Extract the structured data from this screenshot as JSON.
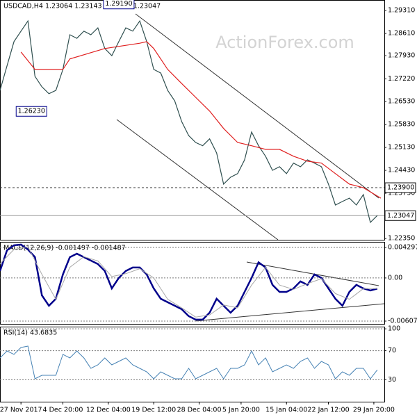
{
  "chart_data": [
    {
      "type": "line",
      "title": "USDCAD,H4 1.23064 1.23143 1.23001 1.23047",
      "watermark": "ActionForex.com",
      "xlim": [
        0,
        110
      ],
      "ylim": [
        1.2231,
        1.2963
      ],
      "grid": false,
      "yticks": [
        {
          "value": 1.2931,
          "label": "1.29310"
        },
        {
          "value": 1.2861,
          "label": "1.28610"
        },
        {
          "value": 1.2793,
          "label": "1.27930"
        },
        {
          "value": 1.2722,
          "label": "1.27220"
        },
        {
          "value": 1.2653,
          "label": "1.26530"
        },
        {
          "value": 1.2583,
          "label": "1.25830"
        },
        {
          "value": 1.2513,
          "label": "1.25130"
        },
        {
          "value": 1.2443,
          "label": "1.24430"
        },
        {
          "value": 1.2373,
          "label": "1.23730"
        },
        {
          "value": 1.2235,
          "label": "1.22350"
        }
      ],
      "levels": [
        {
          "value": 1.239,
          "label": "1.23900",
          "style": "dashed"
        },
        {
          "value": 1.23047,
          "label": "1.23047",
          "style": "solid"
        }
      ],
      "annotations": [
        {
          "x": 34,
          "value": 1.2919,
          "label": "1.29190",
          "placement": "above"
        },
        {
          "x": 9,
          "value": 1.2623,
          "label": "1.26230",
          "placement": "at"
        }
      ],
      "series": [
        {
          "color": "#2f4f4f",
          "width": 1.2,
          "x": [
            0,
            2,
            4,
            6,
            8,
            10,
            12,
            14,
            16,
            18,
            20,
            22,
            24,
            26,
            28,
            30,
            32,
            34,
            36,
            38,
            40,
            42,
            44,
            46,
            48,
            50,
            52,
            54,
            56,
            58,
            60,
            62,
            64,
            66,
            68,
            70,
            72,
            74,
            76,
            78,
            80,
            82,
            84,
            86,
            88,
            90,
            92,
            94,
            96,
            98,
            100,
            102,
            104,
            106,
            108
          ],
          "values": [
            1.2687,
            1.2762,
            1.2836,
            1.2868,
            1.2899,
            1.273,
            1.2698,
            1.2677,
            1.2687,
            1.2751,
            1.2857,
            1.2846,
            1.2868,
            1.2857,
            1.2878,
            1.2815,
            1.2793,
            1.2836,
            1.2878,
            1.2868,
            1.2899,
            1.2836,
            1.2751,
            1.274,
            1.2687,
            1.2655,
            1.2592,
            1.2549,
            1.2528,
            1.2518,
            1.2539,
            1.2496,
            1.2401,
            1.2422,
            1.2433,
            1.2475,
            1.256,
            1.2518,
            1.2486,
            1.2443,
            1.2454,
            1.2433,
            1.2465,
            1.2454,
            1.2475,
            1.2465,
            1.2454,
            1.2401,
            1.2337,
            1.2348,
            1.2358,
            1.2337,
            1.2369,
            1.2284,
            1.2305
          ]
        },
        {
          "color": "#e02020",
          "width": 1.2,
          "x": [
            6,
            10,
            18,
            20,
            30,
            40,
            42,
            44,
            48,
            52,
            56,
            60,
            64,
            68,
            72,
            76,
            80,
            84,
            88,
            92,
            96,
            100,
            104,
            109
          ],
          "values": [
            1.2804,
            1.2751,
            1.2751,
            1.2783,
            1.2815,
            1.2831,
            1.2836,
            1.2815,
            1.2751,
            1.2708,
            1.2666,
            1.2624,
            1.2571,
            1.2528,
            1.2518,
            1.2507,
            1.2507,
            1.2486,
            1.2471,
            1.2465,
            1.2433,
            1.2401,
            1.239,
            1.2358
          ]
        }
      ]
    },
    {
      "type": "line",
      "title": "MACD(12,26,9) -0.001497 -0.001487",
      "xlim": [
        0,
        110
      ],
      "ylim": [
        -0.006462,
        0.005079
      ],
      "grid": true,
      "yticks": [
        0.004297,
        {
          "value": 0,
          "label": "0.00"
        },
        -0.006071
      ],
      "series": [
        {
          "color": "#00008b",
          "width": 2.5,
          "x": [
            0,
            2,
            4,
            6,
            8,
            10,
            12,
            14,
            16,
            18,
            20,
            22,
            24,
            26,
            28,
            30,
            32,
            34,
            36,
            38,
            40,
            42,
            44,
            46,
            48,
            50,
            52,
            54,
            56,
            58,
            60,
            62,
            64,
            66,
            68,
            70,
            72,
            74,
            76,
            78,
            80,
            82,
            84,
            86,
            88,
            90,
            92,
            94,
            96,
            98,
            100,
            102,
            104,
            106,
            108
          ],
          "values": [
            0.00098,
            0.0039,
            0.0046,
            0.0047,
            0.004,
            0.00293,
            -0.00245,
            -0.00391,
            -0.00293,
            0.00049,
            0.00293,
            0.00342,
            0.00293,
            0.00245,
            0.00196,
            0.00098,
            -0.00147,
            0,
            0.00098,
            0.00147,
            0.00147,
            0.00049,
            -0.00147,
            -0.00293,
            -0.00342,
            -0.00391,
            -0.0044,
            -0.00538,
            -0.00587,
            -0.00587,
            -0.00489,
            -0.00293,
            -0.00391,
            -0.00489,
            -0.00391,
            -0.00196,
            0,
            0.0022,
            0.00147,
            -0.00098,
            -0.00196,
            -0.00196,
            -0.00147,
            -0.00049,
            -0.00098,
            0.00049,
            0,
            -0.00147,
            -0.00293,
            -0.00391,
            -0.00196,
            -0.00098,
            -0.00147,
            -0.00176,
            -0.0015
          ]
        },
        {
          "color": "#a9a9a9",
          "width": 1,
          "x": [
            0,
            4,
            8,
            12,
            16,
            20,
            24,
            28,
            32,
            36,
            40,
            44,
            48,
            52,
            56,
            60,
            64,
            68,
            72,
            76,
            80,
            84,
            88,
            92,
            96,
            100,
            104,
            108
          ],
          "values": [
            0.002,
            0.004,
            0.0044,
            0.0005,
            -0.003,
            0.0015,
            0.003,
            0.0024,
            0.0002,
            0.0006,
            0.0013,
            0,
            -0.003,
            -0.0042,
            -0.0055,
            -0.0052,
            -0.0038,
            -0.0042,
            -0.001,
            0.0015,
            -0.001,
            -0.0016,
            -0.0008,
            -0.0001,
            -0.0022,
            -0.003,
            -0.0015,
            -0.0015
          ]
        }
      ]
    },
    {
      "type": "line",
      "title": "RSI(14) 43.6835",
      "xlim": [
        0,
        110
      ],
      "ylim": [
        0,
        103
      ],
      "grid": true,
      "yticks": [
        100,
        70,
        30
      ],
      "xticks": [
        {
          "value": 6,
          "label": "27 Nov 2017"
        },
        {
          "value": 18,
          "label": "4 Dec 20:00"
        },
        {
          "value": 31,
          "label": "12 Dec 04:00"
        },
        {
          "value": 44,
          "label": "19 Dec 12:00"
        },
        {
          "value": 57,
          "label": "28 Dec 04:00"
        },
        {
          "value": 69,
          "label": "5 Jan 20:00"
        },
        {
          "value": 82,
          "label": "15 Jan 04:00"
        },
        {
          "value": 94,
          "label": "22 Jan 12:00"
        },
        {
          "value": 107,
          "label": "29 Jan 20:00"
        }
      ],
      "series": [
        {
          "color": "#4682b4",
          "width": 1,
          "x": [
            0,
            2,
            4,
            6,
            8,
            10,
            12,
            14,
            16,
            18,
            20,
            22,
            24,
            26,
            28,
            30,
            32,
            34,
            36,
            38,
            40,
            42,
            44,
            46,
            48,
            50,
            52,
            54,
            56,
            58,
            60,
            62,
            64,
            66,
            68,
            70,
            72,
            74,
            76,
            78,
            80,
            82,
            84,
            86,
            88,
            90,
            92,
            94,
            96,
            98,
            100,
            102,
            104,
            106,
            108
          ],
          "values": [
            60.1,
            69.6,
            64.9,
            74.4,
            76.3,
            31.5,
            36.2,
            36.2,
            36.2,
            64.9,
            60.1,
            69.6,
            60.1,
            45.8,
            50.5,
            60.1,
            50.5,
            55.3,
            60.1,
            50.5,
            45.8,
            41.0,
            31.5,
            41.0,
            36.2,
            31.5,
            31.5,
            45.8,
            31.5,
            36.2,
            41.0,
            45.8,
            31.5,
            45.8,
            45.8,
            50.5,
            69.6,
            50.5,
            60.1,
            41.0,
            45.8,
            50.5,
            45.8,
            55.3,
            60.1,
            45.8,
            55.3,
            50.5,
            31.5,
            41.0,
            36.2,
            45.8,
            45.8,
            31.5,
            43.7
          ]
        }
      ]
    }
  ]
}
